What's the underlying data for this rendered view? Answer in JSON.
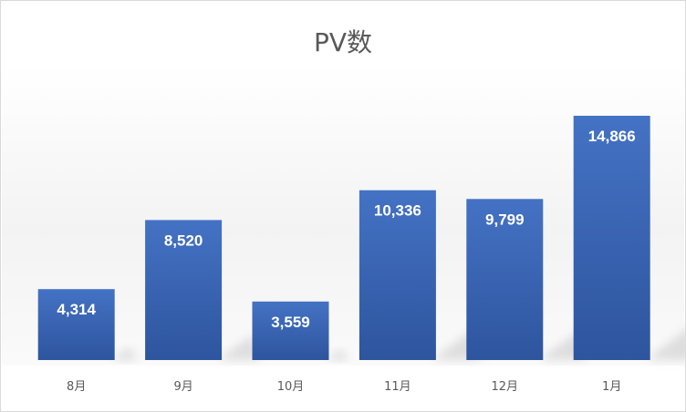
{
  "chart_data": {
    "type": "bar",
    "title": "PV数",
    "xlabel": "",
    "ylabel": "",
    "categories": [
      "8月",
      "9月",
      "10月",
      "11月",
      "12月",
      "1月"
    ],
    "values": [
      4314,
      8520,
      3559,
      10336,
      9799,
      14866
    ],
    "data_labels": [
      "4,314",
      "8,520",
      "3,559",
      "10,336",
      "9,799",
      "14,866"
    ],
    "ylim": [
      0,
      16000
    ],
    "grid": false,
    "legend": "none",
    "bar_color_top": "#4472c4",
    "bar_color_bottom": "#2e559e"
  }
}
